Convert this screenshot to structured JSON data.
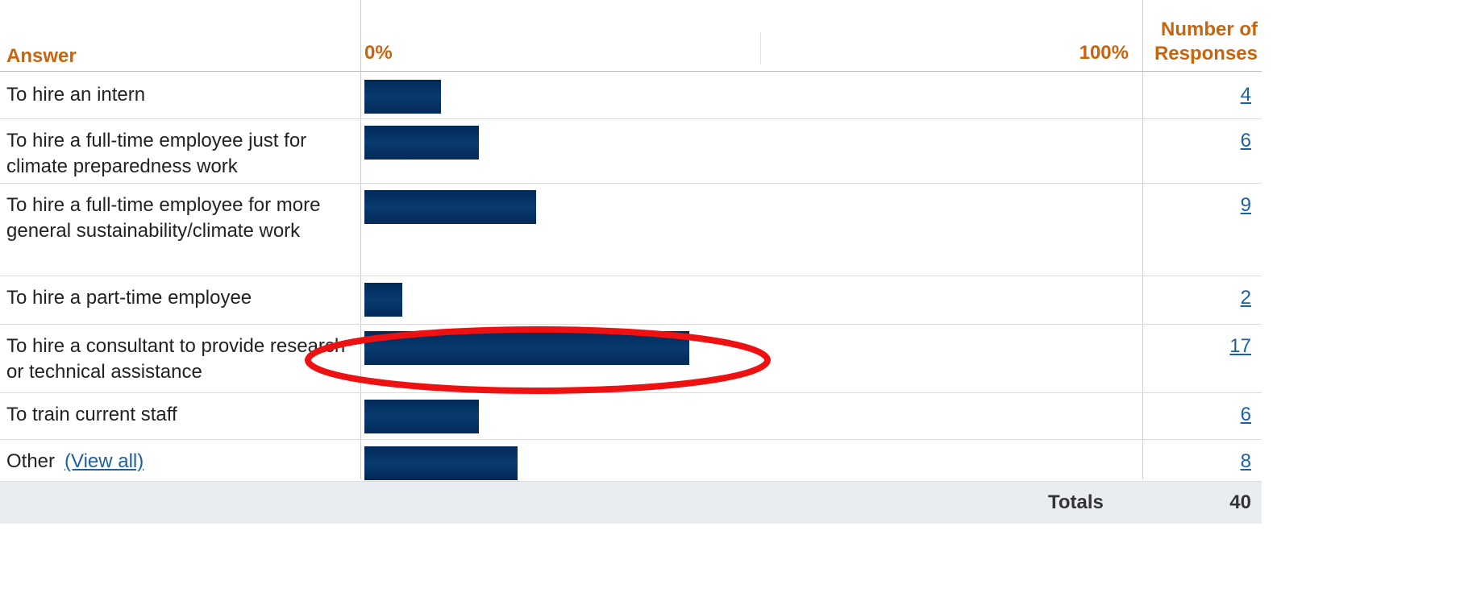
{
  "chart_data": {
    "type": "bar",
    "answer_header": "Answer",
    "responses_header": "Number of Responses",
    "categories": [
      "To hire an intern",
      "To hire a full-time employee just for climate preparedness work",
      "To hire a full-time employee for more general sustainability/climate work",
      "To hire a part-time employee",
      "To hire a consultant to provide research or technical assistance",
      "To train current staff",
      "Other"
    ],
    "values": [
      10,
      15,
      22.5,
      5,
      42.5,
      15,
      20
    ],
    "responses": [
      "4",
      "6",
      "9",
      "2",
      "17",
      "6",
      "8"
    ],
    "view_all_link": "(View all)",
    "color": "#012a58",
    "xlim": [
      0,
      100
    ],
    "xticks": [
      {
        "value": 0,
        "label": "0%"
      },
      {
        "value": 100,
        "label": "100%"
      }
    ],
    "totals_label": "Totals",
    "total": "40"
  }
}
